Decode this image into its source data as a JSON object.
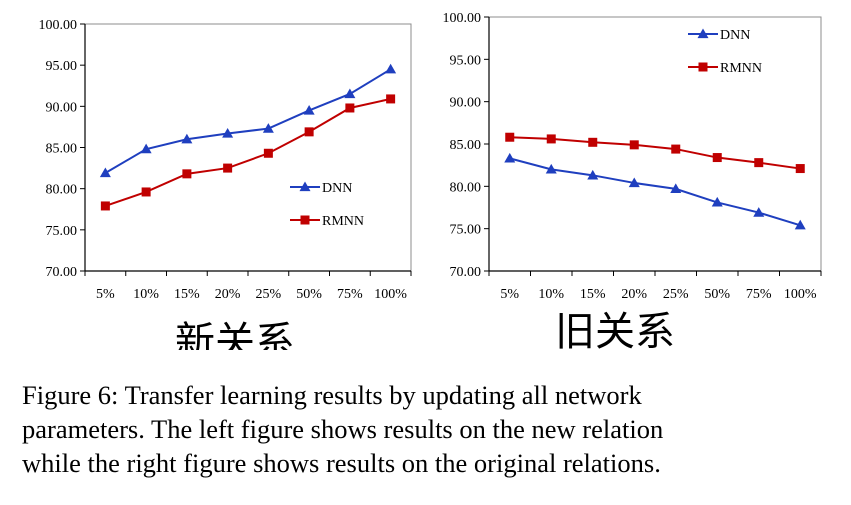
{
  "chart_data": [
    {
      "type": "line",
      "title": "",
      "xlabel": "",
      "ylabel": "",
      "categories": [
        "5%",
        "10%",
        "15%",
        "20%",
        "25%",
        "50%",
        "75%",
        "100%"
      ],
      "ylim": [
        70,
        100
      ],
      "yticks": [
        "70.00",
        "75.00",
        "80.00",
        "85.00",
        "90.00",
        "95.00",
        "100.00"
      ],
      "grid": false,
      "legend_position": "bottom-right",
      "series": [
        {
          "name": "DNN",
          "color": "#1f3fbf",
          "marker": "triangle",
          "values": [
            81.9,
            84.8,
            86.0,
            86.7,
            87.3,
            89.5,
            91.5,
            94.5
          ]
        },
        {
          "name": "RMNN",
          "color": "#c00000",
          "marker": "square",
          "values": [
            77.9,
            79.6,
            81.8,
            82.5,
            84.3,
            86.9,
            89.8,
            90.9
          ]
        }
      ],
      "annotation": "新关系"
    },
    {
      "type": "line",
      "title": "",
      "xlabel": "",
      "ylabel": "",
      "categories": [
        "5%",
        "10%",
        "15%",
        "20%",
        "25%",
        "50%",
        "75%",
        "100%"
      ],
      "ylim": [
        70,
        100
      ],
      "yticks": [
        "70.00",
        "75.00",
        "80.00",
        "85.00",
        "90.00",
        "95.00",
        "100.00"
      ],
      "grid": false,
      "legend_position": "top-right",
      "series": [
        {
          "name": "DNN",
          "color": "#1f3fbf",
          "marker": "triangle",
          "values": [
            83.3,
            82.0,
            81.3,
            80.4,
            79.7,
            78.1,
            76.9,
            75.4
          ]
        },
        {
          "name": "RMNN",
          "color": "#c00000",
          "marker": "square",
          "values": [
            85.8,
            85.6,
            85.2,
            84.9,
            84.4,
            83.4,
            82.8,
            82.1
          ]
        }
      ],
      "annotation": "旧关系"
    }
  ],
  "caption": {
    "lines": [
      "Figure 6: Transfer learning results by updating all network",
      "parameters. The left figure shows results on the new relation",
      "while the right figure shows results on the original relations."
    ]
  }
}
